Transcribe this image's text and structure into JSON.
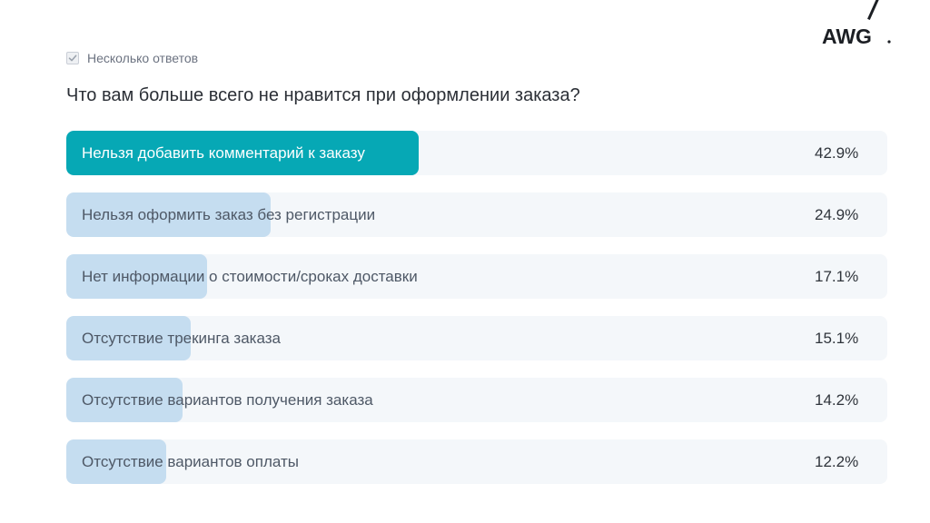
{
  "brand": {
    "logo_text": "AWG",
    "icon": "awg-logo"
  },
  "poll": {
    "multiple_answers_label": "Несколько ответов",
    "multiple_answers_checked": true,
    "question": "Что вам больше всего не нравится при оформлении заказа?",
    "options": [
      {
        "label": "Нельзя добавить комментарий к заказу",
        "percent_text": "42.9%",
        "percent": 42.9,
        "leading": true
      },
      {
        "label": "Нельзя оформить заказ без регистрации",
        "percent_text": "24.9%",
        "percent": 24.9,
        "leading": false
      },
      {
        "label": "Нет информации о стоимости/сроках доставки",
        "percent_text": "17.1%",
        "percent": 17.1,
        "leading": false
      },
      {
        "label": "Отсутствие трекинга заказа",
        "percent_text": "15.1%",
        "percent": 15.1,
        "leading": false
      },
      {
        "label": "Отсутствие вариантов получения заказа",
        "percent_text": "14.2%",
        "percent": 14.2,
        "leading": false
      },
      {
        "label": "Отсутствие вариантов оплаты",
        "percent_text": "12.2%",
        "percent": 12.2,
        "leading": false
      }
    ]
  },
  "colors": {
    "leader_fill": "#06a8b5",
    "bar_fill": "#c5ddf0",
    "bar_track": "#f4f7fa",
    "question_text": "#2b2f36"
  }
}
